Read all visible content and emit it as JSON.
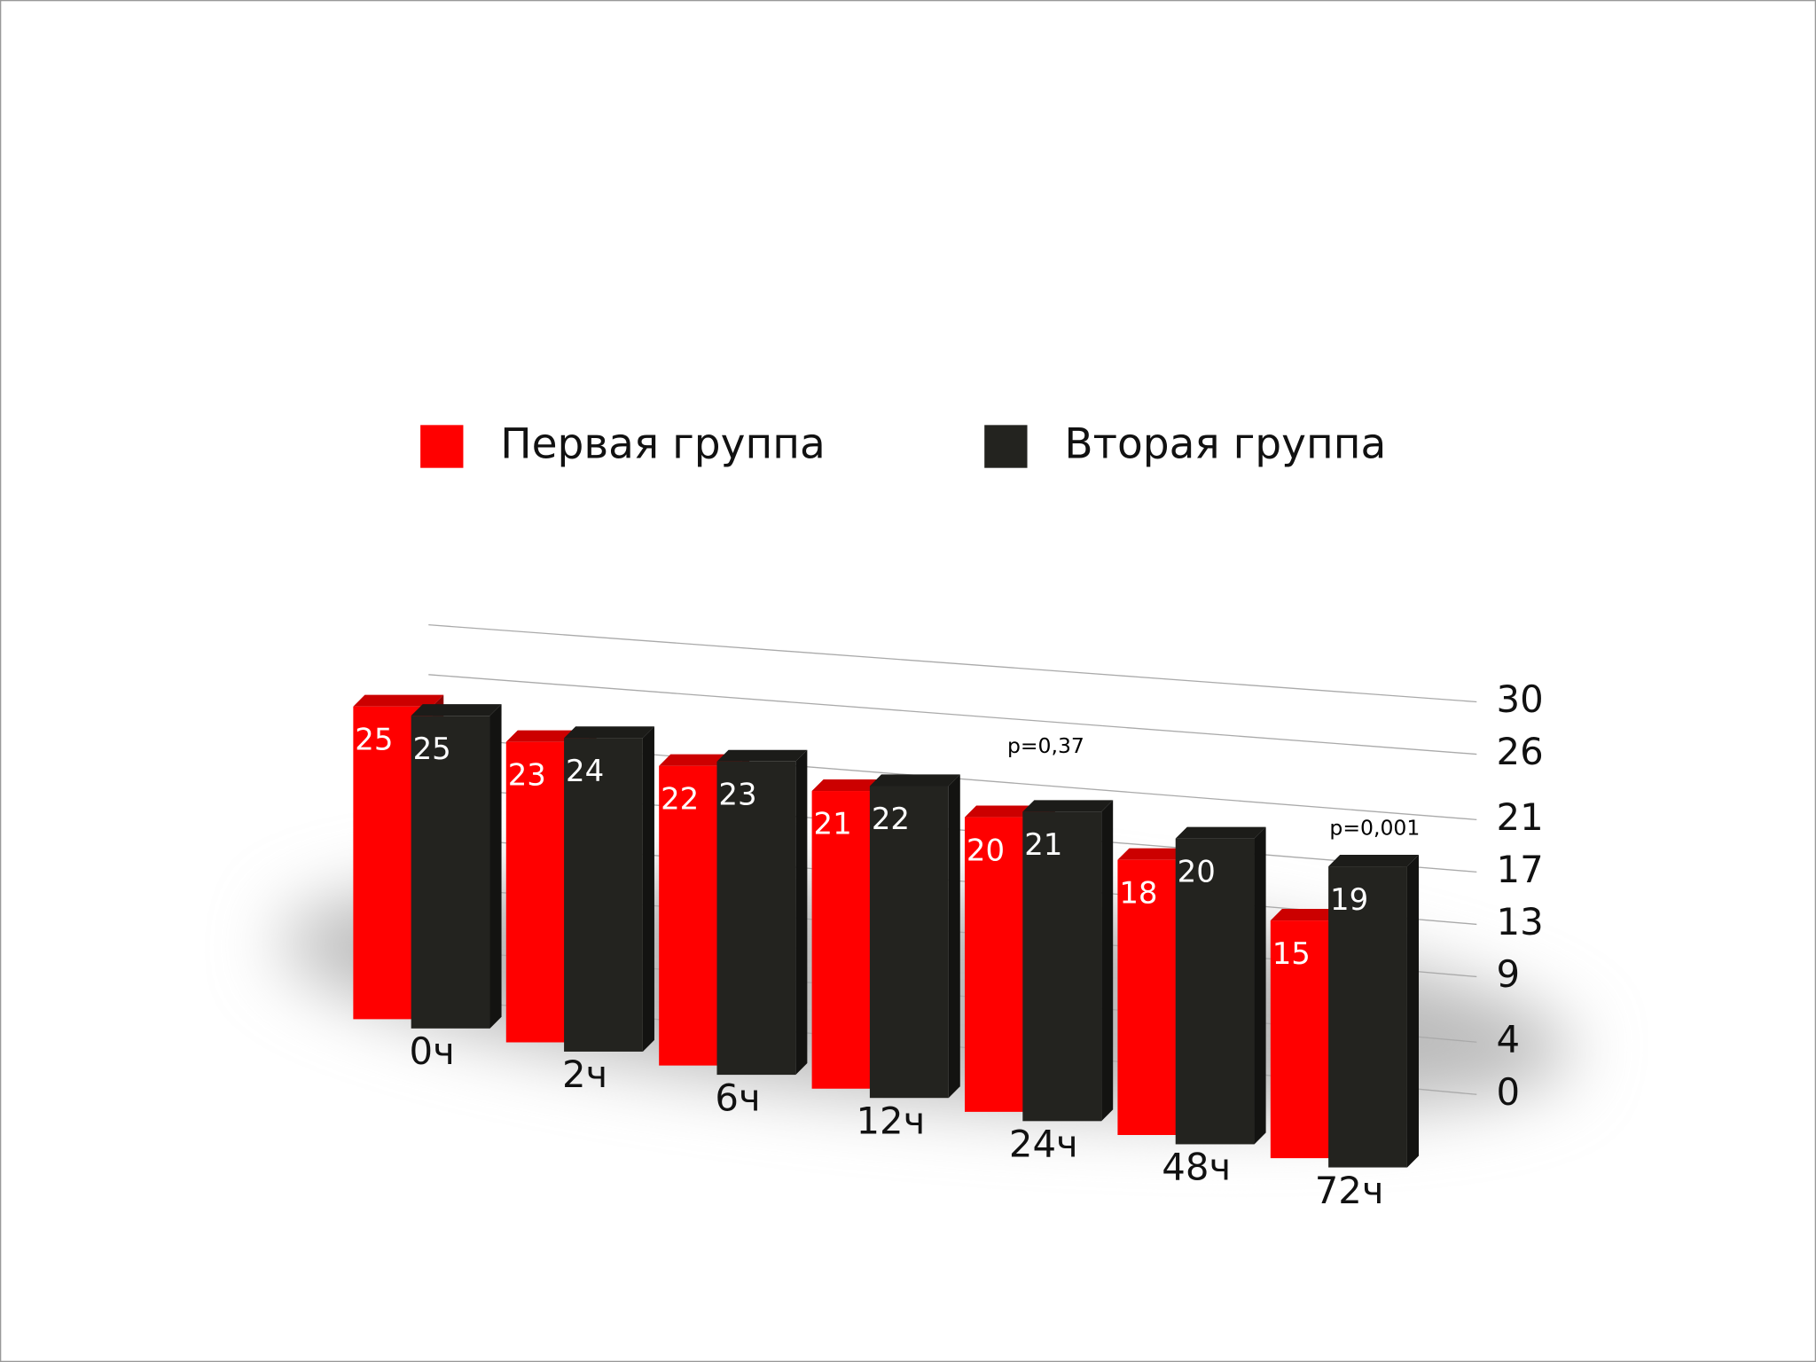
{
  "chart_data": {
    "type": "bar",
    "categories": [
      "0ч",
      "2ч",
      "6ч",
      "12ч",
      "24ч",
      "48ч",
      "72ч"
    ],
    "series": [
      {
        "name": "Первая группа",
        "color": "#ff0000",
        "values": [
          25,
          23,
          22,
          21,
          20,
          18,
          15
        ]
      },
      {
        "name": "Вторая группа",
        "color": "#23231f",
        "values": [
          25,
          24,
          23,
          22,
          21,
          20,
          19
        ]
      }
    ],
    "ylim": [
      0,
      30
    ],
    "yticks": [
      0,
      4,
      9,
      13,
      17,
      21,
      26,
      30
    ],
    "grid": true,
    "annotations": [
      "p=0,37",
      "p=0,001"
    ]
  }
}
